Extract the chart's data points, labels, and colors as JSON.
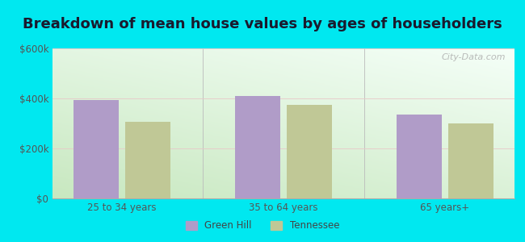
{
  "title": "Breakdown of mean house values by ages of householders",
  "categories": [
    "25 to 34 years",
    "35 to 64 years",
    "65 years+"
  ],
  "green_hill_values": [
    395000,
    410000,
    335000
  ],
  "tennessee_values": [
    305000,
    375000,
    300000
  ],
  "bar_color_gh": "#b09cc8",
  "bar_color_tn": "#c0c896",
  "ylim": [
    0,
    600000
  ],
  "yticks": [
    0,
    200000,
    400000,
    600000
  ],
  "ytick_labels": [
    "$0",
    "$200k",
    "$400k",
    "$600k"
  ],
  "background_outer": "#00e8f0",
  "title_fontsize": 13,
  "legend_labels": [
    "Green Hill",
    "Tennessee"
  ],
  "watermark": "City-Data.com"
}
